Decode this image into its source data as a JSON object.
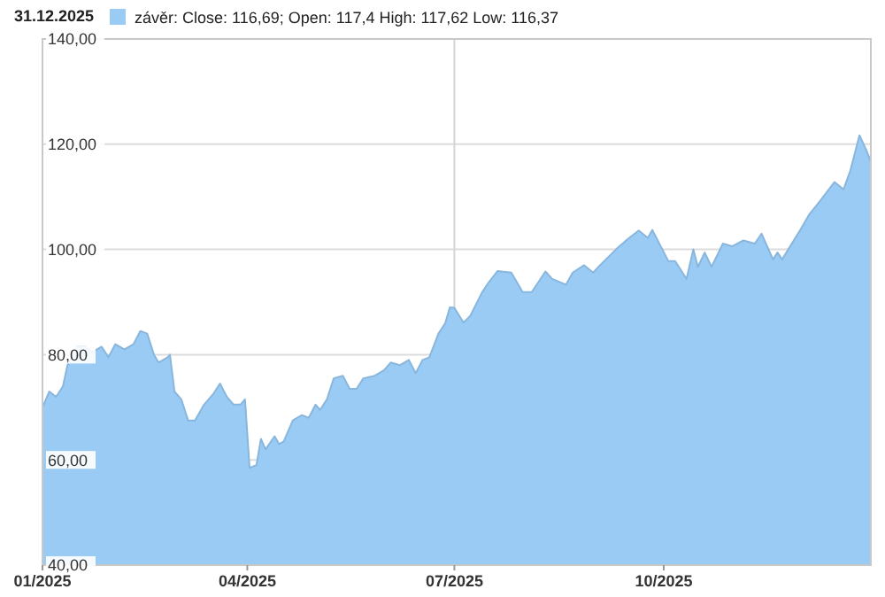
{
  "chart_data": {
    "type": "area",
    "title": "31.12.2025",
    "x": [
      "2025-01-01",
      "2025-01-04",
      "2025-01-07",
      "2025-01-10",
      "2025-01-12",
      "2025-01-16",
      "2025-01-20",
      "2025-01-23",
      "2025-01-27",
      "2025-01-30",
      "2025-02-02",
      "2025-02-06",
      "2025-02-10",
      "2025-02-13",
      "2025-02-16",
      "2025-02-19",
      "2025-02-21",
      "2025-02-25",
      "2025-02-26",
      "2025-02-28",
      "2025-03-03",
      "2025-03-06",
      "2025-03-09",
      "2025-03-13",
      "2025-03-17",
      "2025-03-20",
      "2025-03-23",
      "2025-03-26",
      "2025-03-29",
      "2025-03-31",
      "2025-04-02",
      "2025-04-05",
      "2025-04-07",
      "2025-04-09",
      "2025-04-13",
      "2025-04-15",
      "2025-04-17",
      "2025-04-21",
      "2025-04-25",
      "2025-04-28",
      "2025-05-01",
      "2025-05-03",
      "2025-05-06",
      "2025-05-09",
      "2025-05-13",
      "2025-05-16",
      "2025-05-19",
      "2025-05-22",
      "2025-05-27",
      "2025-05-31",
      "2025-06-03",
      "2025-06-07",
      "2025-06-11",
      "2025-06-14",
      "2025-06-17",
      "2025-06-20",
      "2025-06-24",
      "2025-06-27",
      "2025-06-29",
      "2025-07-01",
      "2025-07-05",
      "2025-07-08",
      "2025-07-13",
      "2025-07-16",
      "2025-07-20",
      "2025-07-26",
      "2025-07-31",
      "2025-08-04",
      "2025-08-10",
      "2025-08-13",
      "2025-08-19",
      "2025-08-22",
      "2025-08-27",
      "2025-08-31",
      "2025-09-03",
      "2025-09-10",
      "2025-09-15",
      "2025-09-20",
      "2025-09-24",
      "2025-09-26",
      "2025-10-03",
      "2025-10-06",
      "2025-10-11",
      "2025-10-14",
      "2025-10-16",
      "2025-10-19",
      "2025-10-22",
      "2025-10-27",
      "2025-10-31",
      "2025-11-05",
      "2025-11-10",
      "2025-11-13",
      "2025-11-18",
      "2025-11-20",
      "2025-11-22",
      "2025-11-30",
      "2025-12-04",
      "2025-12-09",
      "2025-12-15",
      "2025-12-19",
      "2025-12-22",
      "2025-12-26",
      "2025-12-29",
      "2025-12-31"
    ],
    "series": [
      {
        "name": "závěr: Close: 116,69; Open: 117,4 High: 117,62 Low: 116,37",
        "color": "#99cbf5",
        "values": [
          70,
          73,
          72,
          74,
          78,
          81.5,
          81.5,
          80.5,
          81.5,
          79.5,
          82,
          81,
          82,
          84.5,
          84,
          80,
          78.5,
          79.5,
          80,
          73,
          71.5,
          67.5,
          67.5,
          70.5,
          72.5,
          74.5,
          72,
          70.5,
          70.5,
          71.5,
          58.5,
          59,
          64,
          62,
          64.5,
          63,
          63.5,
          67.5,
          68.5,
          68,
          70.5,
          69.5,
          71.5,
          75.5,
          76,
          73.5,
          73.5,
          75.5,
          76,
          77,
          78.5,
          78,
          79,
          76.5,
          79,
          79.5,
          84,
          86,
          89,
          88.9,
          86.1,
          87.4,
          91.7,
          93.7,
          95.9,
          95.6,
          91.9,
          91.9,
          95.8,
          94.4,
          93.3,
          95.6,
          97,
          95.6,
          97,
          100,
          101.9,
          103.6,
          102.2,
          103.7,
          97.8,
          97.8,
          94.4,
          100,
          96.7,
          99.4,
          96.7,
          101.1,
          100.6,
          101.7,
          101.1,
          103,
          98.1,
          99.4,
          98.1,
          103.7,
          106.7,
          109.4,
          112.8,
          111.4,
          115,
          121.7,
          118.9,
          116.69
        ]
      }
    ],
    "xlim": [
      "2025-01-01",
      "2025-12-31"
    ],
    "xticks": [
      {
        "value": "2025-01-01",
        "label": "01/2025"
      },
      {
        "value": "2025-04-01",
        "label": "04/2025"
      },
      {
        "value": "2025-07-01",
        "label": "07/2025"
      },
      {
        "value": "2025-10-01",
        "label": "10/2025"
      }
    ],
    "ylim": [
      40,
      140
    ],
    "yticks": [
      {
        "value": 40,
        "label": "40,00"
      },
      {
        "value": 60,
        "label": "60,00"
      },
      {
        "value": 80,
        "label": "80,00"
      },
      {
        "value": 100,
        "label": "100,00"
      },
      {
        "value": 120,
        "label": "120,00"
      },
      {
        "value": 140,
        "label": "140,00"
      }
    ],
    "ref_lines": [
      {
        "axis": "x",
        "value": "2025-07-01",
        "label": null,
        "color": "#d4d4d4"
      }
    ],
    "grid": "y",
    "legend": "top left"
  }
}
